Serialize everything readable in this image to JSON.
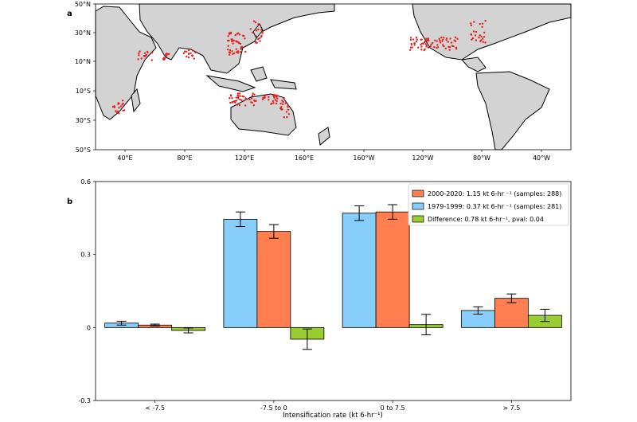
{
  "map": {
    "panel_label": "a",
    "lat_ticks": [
      "50°N",
      "30°N",
      "10°N",
      "10°S",
      "30°S",
      "50°S"
    ],
    "lon_ticks": [
      "40°E",
      "80°E",
      "120°E",
      "160°E",
      "160°W",
      "120°W",
      "80°W",
      "40°W"
    ],
    "land_color": "#d3d3d3",
    "point_color": "#e8201c"
  },
  "chart_data": {
    "type": "bar",
    "panel_label": "b",
    "categories": [
      "< -7.5",
      "-7.5 to 0",
      "0 to 7.5",
      "> 7.5"
    ],
    "xlabel": "Intensification rate (kt 6-hr⁻¹)",
    "ylabel": "",
    "ylim": [
      -0.3,
      0.6
    ],
    "yticks": [
      "-0.3",
      "0",
      "0.3",
      "0.6"
    ],
    "series": [
      {
        "name": "1979-1999: 0.37  kt 6-hr ⁻¹ (samples: 281)",
        "color": "#87cefa",
        "values": [
          0.018,
          0.445,
          0.47,
          0.07
        ],
        "err": [
          0.008,
          0.03,
          0.03,
          0.015
        ]
      },
      {
        "name": "2000-2020: 1.15 kt 6-hr ⁻¹ (samples: 288)",
        "color": "#ff7f50",
        "values": [
          0.01,
          0.395,
          0.475,
          0.12
        ],
        "err": [
          0.004,
          0.028,
          0.03,
          0.018
        ]
      },
      {
        "name": "Difference: 0.78 kt 6-hr⁻¹, pval: 0.04",
        "color": "#9acd32",
        "values": [
          -0.012,
          -0.048,
          0.012,
          0.05
        ],
        "err": [
          0.01,
          0.042,
          0.042,
          0.025
        ]
      }
    ],
    "legend_order": [
      1,
      0,
      2
    ],
    "legend_position": "top-right",
    "grid": false
  }
}
